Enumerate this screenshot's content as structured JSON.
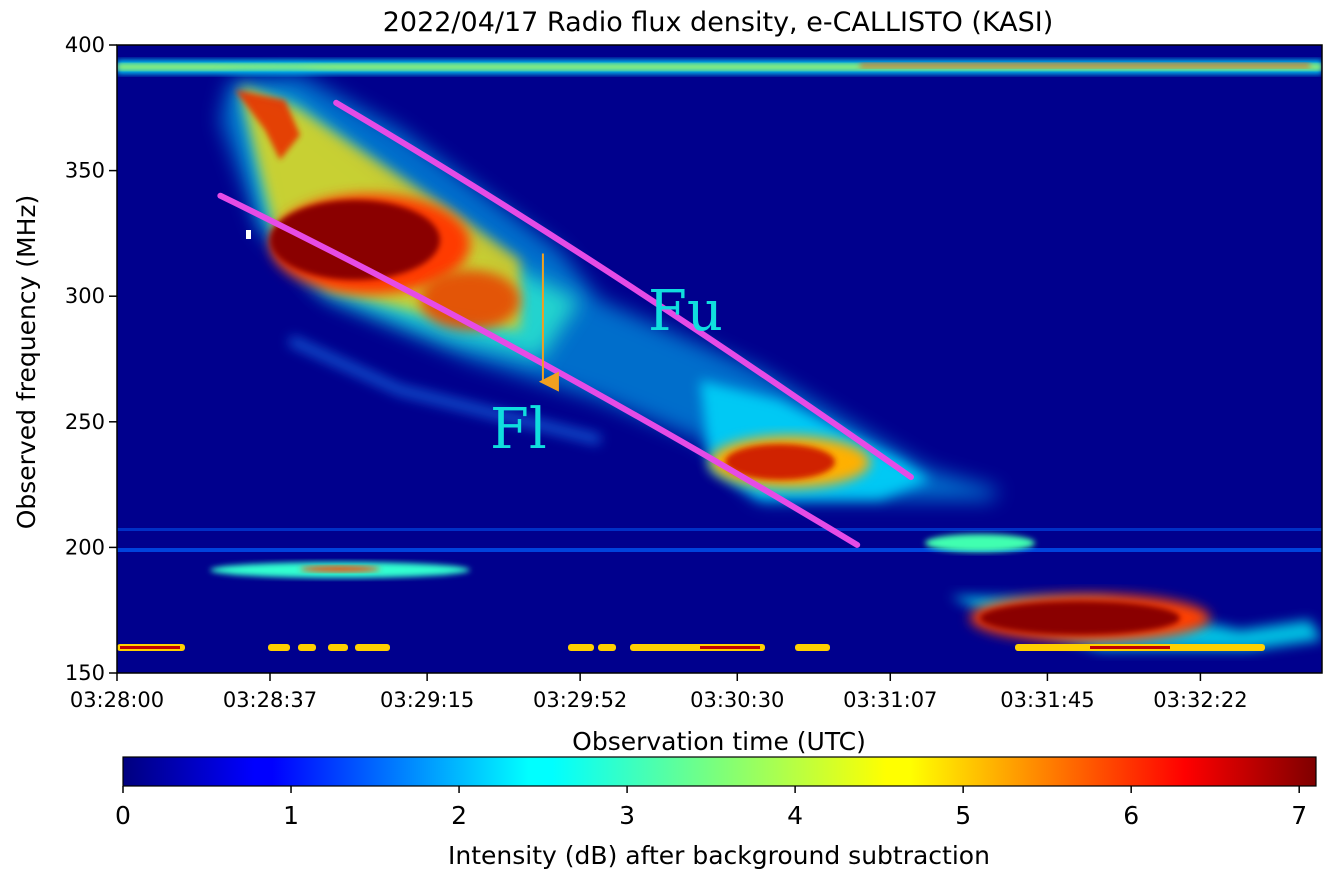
{
  "chart_data": {
    "type": "heatmap",
    "title": "2022/04/17  Radio flux density, e-CALLISTO (KASI)",
    "xlabel": "Observation time (UTC)",
    "ylabel": "Observed frequency (MHz)",
    "x_ticks": [
      "03:28:00",
      "03:28:37",
      "03:29:15",
      "03:29:52",
      "03:30:30",
      "03:31:07",
      "03:31:45",
      "03:32:22"
    ],
    "y_ticks": [
      150,
      200,
      250,
      300,
      350,
      400
    ],
    "ylim": [
      150,
      400
    ],
    "colorbar": {
      "label": "Intensity (dB) after background subtraction",
      "ticks": [
        0,
        1,
        2,
        3,
        4,
        5,
        6,
        7
      ],
      "range": [
        0,
        7.1
      ],
      "colormap": "jet"
    },
    "features": [
      {
        "name": "Fu",
        "type": "upper-band fit line",
        "start": {
          "time": "03:28:53",
          "freq_mhz": 377
        },
        "end": {
          "time": "03:31:12",
          "freq_mhz": 228
        }
      },
      {
        "name": "Fl",
        "type": "lower-band fit line",
        "start": {
          "time": "03:28:25",
          "freq_mhz": 340
        },
        "end": {
          "time": "03:30:59",
          "freq_mhz": 201
        }
      },
      {
        "name": "band-split arrow",
        "from": {
          "time": "03:29:43",
          "freq_mhz": 317
        },
        "to": {
          "time": "03:29:43",
          "freq_mhz": 262
        }
      }
    ],
    "colors": {
      "fit_line": "#e64be6",
      "arrow": "#f0a020",
      "label": "#10dede",
      "background": "#00007f"
    }
  }
}
